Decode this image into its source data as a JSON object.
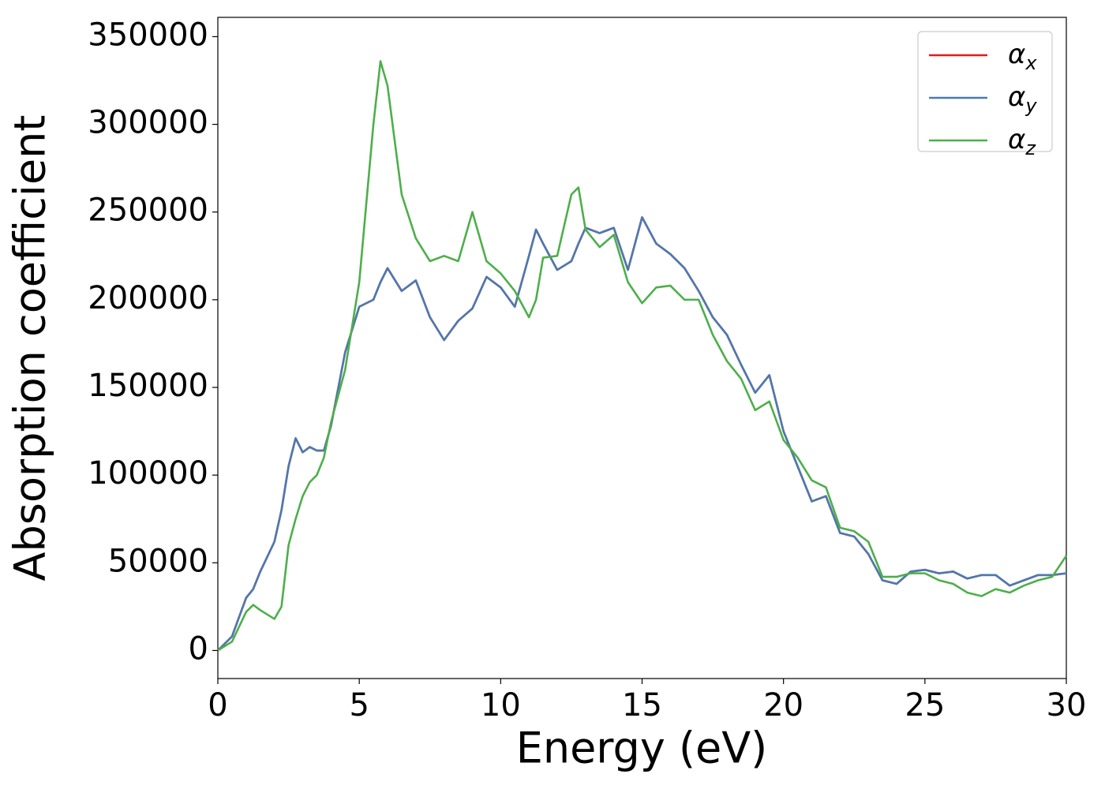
{
  "chart_data": {
    "type": "line",
    "xlabel": "Energy (eV)",
    "ylabel": "Absorption coefficient",
    "x": [
      0,
      0.5,
      1,
      1.25,
      1.5,
      2,
      2.25,
      2.5,
      2.75,
      3,
      3.25,
      3.5,
      3.75,
      4,
      4.5,
      5,
      5.5,
      5.75,
      6,
      6.5,
      7,
      7.5,
      8,
      8.5,
      9,
      9.5,
      10,
      10.5,
      11,
      11.25,
      11.5,
      12,
      12.5,
      12.75,
      13,
      13.5,
      14,
      14.5,
      15,
      15.5,
      16,
      16.5,
      17,
      17.5,
      18,
      18.5,
      19,
      19.5,
      20,
      20.5,
      21,
      21.5,
      22,
      22.5,
      23,
      23.5,
      24,
      24.5,
      25,
      25.5,
      26,
      26.5,
      27,
      27.5,
      28,
      28.5,
      29,
      29.5,
      30
    ],
    "series": [
      {
        "name": "αx",
        "color": "#e41a1c",
        "values": [
          0,
          8000,
          30000,
          35000,
          45000,
          62000,
          80000,
          105000,
          121000,
          113000,
          116000,
          114000,
          114000,
          128000,
          170000,
          196000,
          200000,
          210000,
          218000,
          205000,
          211000,
          190000,
          177000,
          188000,
          195000,
          213000,
          207000,
          196000,
          225000,
          240000,
          232000,
          217000,
          222000,
          232000,
          241000,
          238000,
          241000,
          217000,
          247000,
          232000,
          226000,
          218000,
          205000,
          190000,
          180000,
          163000,
          147000,
          157000,
          125000,
          105000,
          85000,
          88000,
          67000,
          65000,
          55000,
          40000,
          38000,
          45000,
          46000,
          44000,
          45000,
          41000,
          43000,
          43000,
          37000,
          40000,
          43000,
          43000,
          44000
        ]
      },
      {
        "name": "αy",
        "color": "#4a7ab0",
        "values": [
          0,
          8000,
          30000,
          35000,
          45000,
          62000,
          80000,
          105000,
          121000,
          113000,
          116000,
          114000,
          114000,
          128000,
          170000,
          196000,
          200000,
          210000,
          218000,
          205000,
          211000,
          190000,
          177000,
          188000,
          195000,
          213000,
          207000,
          196000,
          225000,
          240000,
          232000,
          217000,
          222000,
          232000,
          241000,
          238000,
          241000,
          217000,
          247000,
          232000,
          226000,
          218000,
          205000,
          190000,
          180000,
          163000,
          147000,
          157000,
          125000,
          105000,
          85000,
          88000,
          67000,
          65000,
          55000,
          40000,
          38000,
          45000,
          46000,
          44000,
          45000,
          41000,
          43000,
          43000,
          37000,
          40000,
          43000,
          43000,
          44000
        ]
      },
      {
        "name": "αz",
        "color": "#4daf4a",
        "values": [
          0,
          5000,
          22000,
          26000,
          23000,
          18000,
          25000,
          60000,
          75000,
          88000,
          96000,
          100000,
          110000,
          130000,
          160000,
          210000,
          300000,
          336000,
          322000,
          260000,
          235000,
          222000,
          225000,
          222000,
          250000,
          222000,
          215000,
          205000,
          190000,
          200000,
          224000,
          225000,
          260000,
          264000,
          240000,
          230000,
          237000,
          210000,
          198000,
          207000,
          208000,
          200000,
          200000,
          180000,
          165000,
          155000,
          137000,
          142000,
          120000,
          110000,
          97000,
          93000,
          70000,
          68000,
          62000,
          42000,
          42000,
          44000,
          44000,
          40000,
          38000,
          33000,
          31000,
          35000,
          33000,
          37000,
          40000,
          42000,
          54000
        ]
      }
    ],
    "xlim": [
      0,
      30
    ],
    "xticks": [
      0,
      5,
      10,
      15,
      20,
      25,
      30
    ],
    "ylim": [
      -16000,
      361000
    ],
    "yticks": [
      0,
      50000,
      100000,
      150000,
      200000,
      250000,
      300000,
      350000
    ],
    "legend": "upper right",
    "grid": false
  }
}
